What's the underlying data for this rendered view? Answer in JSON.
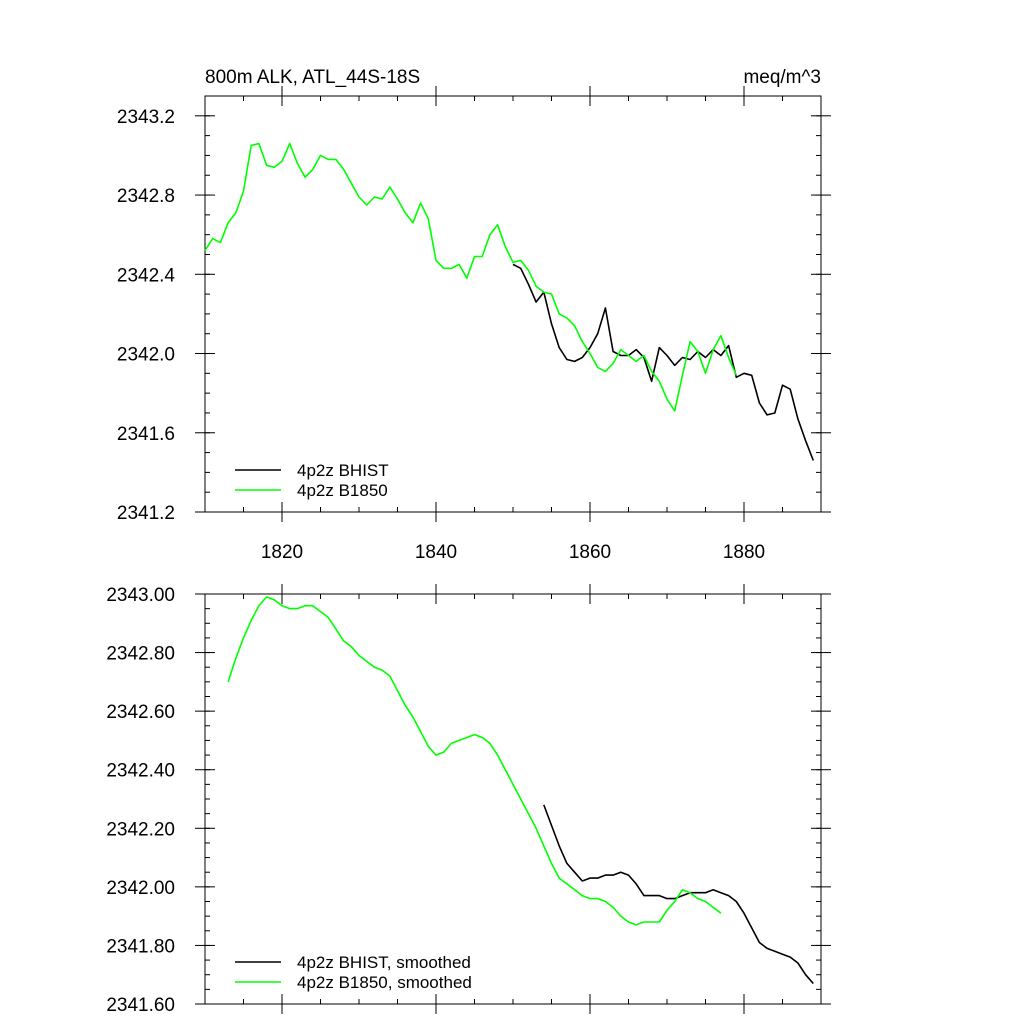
{
  "chart_data": [
    {
      "type": "line",
      "title": "800m ALK, ATL_44S-18S",
      "units": "meq/m^3",
      "xlim": [
        1810,
        1890
      ],
      "ylim": [
        2341.2,
        2343.3
      ],
      "x_ticks": [
        "1820",
        "1840",
        "1860",
        "1880"
      ],
      "y_ticks": [
        "2341.2",
        "2341.6",
        "2342.0",
        "2342.4",
        "2342.8",
        "2343.2"
      ],
      "legend": "bottom-left",
      "series": [
        {
          "name": "4p2z BHIST",
          "color": "#000000",
          "x": [
            1850,
            1851,
            1852,
            1853,
            1854,
            1855,
            1856,
            1857,
            1858,
            1859,
            1860,
            1861,
            1862,
            1863,
            1864,
            1865,
            1866,
            1867,
            1868,
            1869,
            1870,
            1871,
            1872,
            1873,
            1874,
            1875,
            1876,
            1877,
            1878,
            1879,
            1880,
            1881,
            1882,
            1883,
            1884,
            1885,
            1886,
            1887,
            1888,
            1889
          ],
          "y": [
            2342.45,
            2342.43,
            2342.35,
            2342.26,
            2342.31,
            2342.15,
            2342.03,
            2341.97,
            2341.96,
            2341.98,
            2342.03,
            2342.1,
            2342.23,
            2342.01,
            2341.99,
            2341.99,
            2342.02,
            2341.98,
            2341.86,
            2342.03,
            2341.99,
            2341.94,
            2341.98,
            2341.97,
            2342.01,
            2341.98,
            2342.02,
            2341.99,
            2342.04,
            2341.88,
            2341.9,
            2341.89,
            2341.75,
            2341.69,
            2341.7,
            2341.84,
            2341.82,
            2341.67,
            2341.56,
            2341.46
          ]
        },
        {
          "name": "4p2z B1850",
          "color": "#00ff00",
          "x": [
            1810,
            1811,
            1812,
            1813,
            1814,
            1815,
            1816,
            1817,
            1818,
            1819,
            1820,
            1821,
            1822,
            1823,
            1824,
            1825,
            1826,
            1827,
            1828,
            1829,
            1830,
            1831,
            1832,
            1833,
            1834,
            1835,
            1836,
            1837,
            1838,
            1839,
            1840,
            1841,
            1842,
            1843,
            1844,
            1845,
            1846,
            1847,
            1848,
            1849,
            1850,
            1851,
            1852,
            1853,
            1854,
            1855,
            1856,
            1857,
            1858,
            1859,
            1860,
            1861,
            1862,
            1863,
            1864,
            1865,
            1866,
            1867,
            1868,
            1869,
            1870,
            1871,
            1872,
            1873,
            1874,
            1875,
            1876,
            1877,
            1878,
            1879
          ],
          "y": [
            2342.52,
            2342.58,
            2342.56,
            2342.66,
            2342.71,
            2342.82,
            2343.05,
            2343.06,
            2342.95,
            2342.94,
            2342.97,
            2343.06,
            2342.96,
            2342.89,
            2342.93,
            2343.0,
            2342.98,
            2342.98,
            2342.93,
            2342.86,
            2342.79,
            2342.75,
            2342.79,
            2342.78,
            2342.84,
            2342.78,
            2342.71,
            2342.66,
            2342.76,
            2342.68,
            2342.47,
            2342.43,
            2342.43,
            2342.45,
            2342.38,
            2342.49,
            2342.49,
            2342.6,
            2342.65,
            2342.54,
            2342.46,
            2342.47,
            2342.42,
            2342.34,
            2342.31,
            2342.3,
            2342.2,
            2342.18,
            2342.14,
            2342.06,
            2342.0,
            2341.93,
            2341.91,
            2341.95,
            2342.02,
            2341.99,
            2341.96,
            2341.99,
            2341.91,
            2341.86,
            2341.77,
            2341.71,
            2341.89,
            2342.06,
            2342.01,
            2341.9,
            2342.02,
            2342.09,
            2341.98,
            2341.89
          ]
        }
      ]
    },
    {
      "type": "line",
      "xlim": [
        1810,
        1890
      ],
      "ylim": [
        2341.6,
        2343.0
      ],
      "y_ticks": [
        "2341.60",
        "2341.80",
        "2342.00",
        "2342.20",
        "2342.40",
        "2342.60",
        "2342.80",
        "2343.00"
      ],
      "legend": "bottom-left",
      "series": [
        {
          "name": "4p2z BHIST, smoothed",
          "color": "#000000",
          "x": [
            1854,
            1855,
            1856,
            1857,
            1858,
            1859,
            1860,
            1861,
            1862,
            1863,
            1864,
            1865,
            1866,
            1867,
            1868,
            1869,
            1870,
            1871,
            1872,
            1873,
            1874,
            1875,
            1876,
            1877,
            1878,
            1879,
            1880,
            1881,
            1882,
            1883,
            1884,
            1885,
            1886,
            1887,
            1888,
            1889
          ],
          "y": [
            2342.28,
            2342.21,
            2342.14,
            2342.08,
            2342.05,
            2342.02,
            2342.03,
            2342.03,
            2342.04,
            2342.04,
            2342.05,
            2342.04,
            2342.01,
            2341.97,
            2341.97,
            2341.97,
            2341.96,
            2341.96,
            2341.97,
            2341.98,
            2341.98,
            2341.98,
            2341.99,
            2341.98,
            2341.97,
            2341.95,
            2341.91,
            2341.86,
            2341.81,
            2341.79,
            2341.78,
            2341.77,
            2341.76,
            2341.74,
            2341.7,
            2341.67
          ]
        },
        {
          "name": "4p2z B1850, smoothed",
          "color": "#00ff00",
          "x": [
            1813,
            1814,
            1815,
            1816,
            1817,
            1818,
            1819,
            1820,
            1821,
            1822,
            1823,
            1824,
            1825,
            1826,
            1827,
            1828,
            1829,
            1830,
            1831,
            1832,
            1833,
            1834,
            1835,
            1836,
            1837,
            1838,
            1839,
            1840,
            1841,
            1842,
            1843,
            1844,
            1845,
            1846,
            1847,
            1848,
            1849,
            1850,
            1851,
            1852,
            1853,
            1854,
            1855,
            1856,
            1857,
            1858,
            1859,
            1860,
            1861,
            1862,
            1863,
            1864,
            1865,
            1866,
            1867,
            1868,
            1869,
            1870,
            1871,
            1872,
            1873,
            1874,
            1875,
            1876,
            1877
          ],
          "y": [
            2342.7,
            2342.78,
            2342.85,
            2342.91,
            2342.96,
            2342.99,
            2342.98,
            2342.96,
            2342.95,
            2342.95,
            2342.96,
            2342.96,
            2342.94,
            2342.92,
            2342.88,
            2342.84,
            2342.82,
            2342.79,
            2342.77,
            2342.75,
            2342.74,
            2342.72,
            2342.67,
            2342.62,
            2342.58,
            2342.53,
            2342.48,
            2342.45,
            2342.46,
            2342.49,
            2342.5,
            2342.51,
            2342.52,
            2342.51,
            2342.49,
            2342.45,
            2342.4,
            2342.35,
            2342.3,
            2342.25,
            2342.2,
            2342.14,
            2342.08,
            2342.03,
            2342.01,
            2341.99,
            2341.97,
            2341.96,
            2341.96,
            2341.95,
            2341.93,
            2341.9,
            2341.88,
            2341.87,
            2341.88,
            2341.88,
            2341.88,
            2341.92,
            2341.95,
            2341.99,
            2341.98,
            2341.96,
            2341.95,
            2341.93,
            2341.91
          ]
        }
      ]
    }
  ]
}
